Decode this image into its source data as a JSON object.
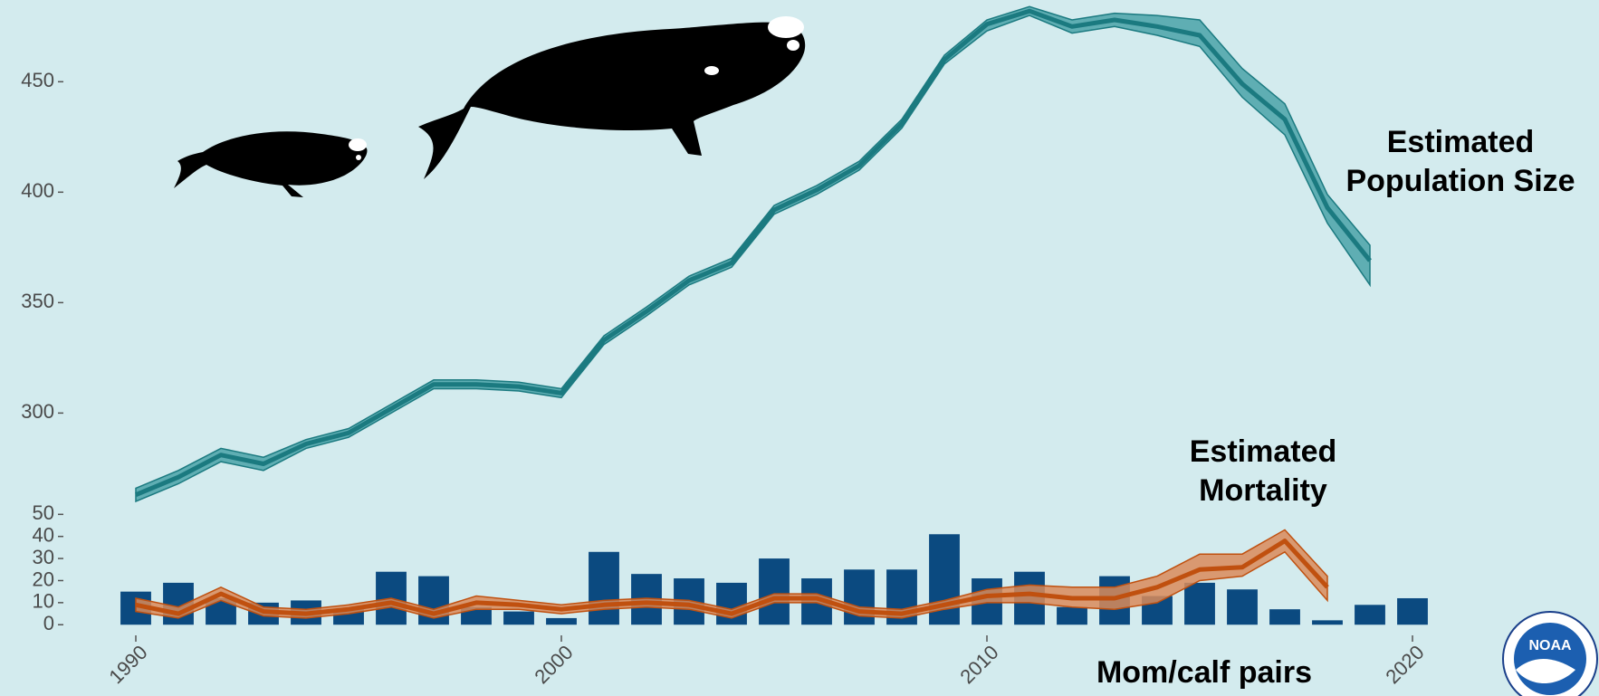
{
  "chart_data": [
    {
      "type": "line",
      "x": [
        1990,
        1991,
        1992,
        1993,
        1994,
        1995,
        1996,
        1997,
        1998,
        1999,
        2000,
        2001,
        2002,
        2003,
        2004,
        2005,
        2006,
        2007,
        2008,
        2009,
        2010,
        2011,
        2012,
        2013,
        2014,
        2015,
        2016,
        2017,
        2018,
        2019
      ],
      "series": [
        {
          "name": "Estimated Population Size",
          "color": "#1b7a80",
          "band_color": "#4aa3a8",
          "values": [
            263,
            271,
            281,
            277,
            286,
            291,
            302,
            313,
            313,
            312,
            309,
            333,
            346,
            360,
            368,
            392,
            401,
            412,
            431,
            460,
            476,
            482,
            475,
            478,
            475,
            471,
            449,
            433,
            393,
            369
          ],
          "lower": [
            260,
            268,
            278,
            274,
            284,
            289,
            300,
            311,
            311,
            310,
            307,
            331,
            344,
            358,
            366,
            390,
            399,
            410,
            429,
            458,
            473,
            480,
            472,
            475,
            471,
            466,
            443,
            426,
            386,
            358
          ],
          "upper": [
            266,
            274,
            284,
            280,
            288,
            293,
            304,
            315,
            315,
            314,
            311,
            335,
            348,
            362,
            370,
            394,
            403,
            414,
            433,
            462,
            478,
            484,
            478,
            481,
            480,
            478,
            456,
            440,
            399,
            376
          ]
        }
      ],
      "xlim": [
        1989.5,
        2020.5
      ],
      "ylim": [
        260,
        487
      ],
      "yticks": [
        300,
        350,
        400,
        450
      ]
    },
    {
      "type": "bar",
      "x": [
        1990,
        1991,
        1992,
        1993,
        1994,
        1995,
        1996,
        1997,
        1998,
        1999,
        2000,
        2001,
        2002,
        2003,
        2004,
        2005,
        2006,
        2007,
        2008,
        2009,
        2010,
        2011,
        2012,
        2013,
        2014,
        2015,
        2016,
        2017,
        2018,
        2019,
        2020
      ],
      "series": [
        {
          "name": "Mom/calf pairs",
          "type": "bar",
          "color": "#0b4a80",
          "values": [
            15,
            19,
            12,
            10,
            11,
            7,
            24,
            22,
            8,
            6,
            3,
            33,
            23,
            21,
            19,
            30,
            21,
            25,
            25,
            41,
            21,
            24,
            8,
            22,
            13,
            19,
            16,
            7,
            2,
            9,
            12
          ]
        },
        {
          "name": "Estimated Mortality",
          "type": "line",
          "color": "#c0500f",
          "band_color": "#d98b5a",
          "values": [
            9,
            5,
            14,
            6,
            5,
            7,
            10,
            5,
            10,
            9,
            7,
            9,
            10,
            9,
            5,
            12,
            12,
            6,
            5,
            9,
            13,
            14,
            12,
            12,
            17,
            25,
            26,
            38,
            17,
            null,
            null
          ],
          "lower": [
            6,
            3,
            11,
            4,
            3,
            5,
            8,
            3,
            7,
            7,
            5,
            7,
            8,
            7,
            3,
            10,
            10,
            4,
            3,
            7,
            10,
            10,
            8,
            7,
            10,
            20,
            22,
            33,
            11,
            null,
            null
          ],
          "upper": [
            12,
            8,
            17,
            8,
            7,
            9,
            12,
            7,
            13,
            11,
            9,
            11,
            12,
            11,
            7,
            14,
            14,
            8,
            7,
            11,
            16,
            18,
            17,
            17,
            22,
            32,
            32,
            43,
            22,
            null,
            null
          ]
        }
      ],
      "xlim": [
        1989.5,
        2020.5
      ],
      "ylim": [
        -4,
        53
      ],
      "yticks": [
        0,
        10,
        20,
        30,
        40,
        50
      ],
      "xticks": [
        1990,
        2000,
        2010,
        2020
      ]
    }
  ],
  "logo": {
    "text": "NOAA"
  }
}
